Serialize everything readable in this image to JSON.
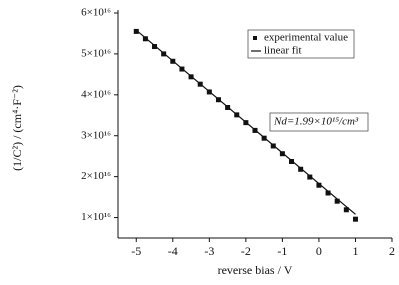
{
  "chart_data": {
    "type": "scatter",
    "xlabel": "reverse bias / V",
    "ylabel": "(1/C²) / (cm⁴·F⁻²)",
    "annotation": "Nd=1.99×10¹⁵/cm³",
    "xlim": [
      -5.5,
      2
    ],
    "xticks": [
      -5,
      -4,
      -3,
      -2,
      -1,
      0,
      1,
      2
    ],
    "ylim": [
      5000000000000000.0,
      6e+16
    ],
    "yticks": [
      {
        "value": 1e+16,
        "label": "1×10¹⁶"
      },
      {
        "value": 2e+16,
        "label": "2×10¹⁶"
      },
      {
        "value": 3e+16,
        "label": "3×10¹⁶"
      },
      {
        "value": 4e+16,
        "label": "4×10¹⁶"
      },
      {
        "value": 5e+16,
        "label": "5×10¹⁶"
      },
      {
        "value": 6e+16,
        "label": "6×10¹⁶"
      }
    ],
    "legend": "upper right",
    "series": [
      {
        "name": "experimental value",
        "type": "scatter",
        "color": "#111111",
        "x": [
          -5,
          -4.75,
          -4.5,
          -4.25,
          -4,
          -3.75,
          -3.5,
          -3.25,
          -3,
          -2.75,
          -2.5,
          -2.25,
          -2,
          -1.75,
          -1.5,
          -1.25,
          -1,
          -0.75,
          -0.5,
          -0.25,
          0,
          0.25,
          0.5,
          0.75,
          1
        ],
        "y": [
          5.55e+16,
          5.37e+16,
          5.18e+16,
          5e+16,
          4.82e+16,
          4.63e+16,
          4.44e+16,
          4.26e+16,
          4.07e+16,
          3.88e+16,
          3.69e+16,
          3.51e+16,
          3.32e+16,
          3.13e+16,
          2.94e+16,
          2.75e+16,
          2.56e+16,
          2.37e+16,
          2.18e+16,
          1.99e+16,
          1.79e+16,
          1.6e+16,
          1.4e+16,
          1.19e+16,
          9600000000000000.0
        ]
      },
      {
        "name": "linear fit",
        "type": "line",
        "color": "#111111",
        "x": [
          -5,
          1
        ],
        "y": [
          5.58e+16,
          1.08e+16
        ]
      }
    ]
  }
}
